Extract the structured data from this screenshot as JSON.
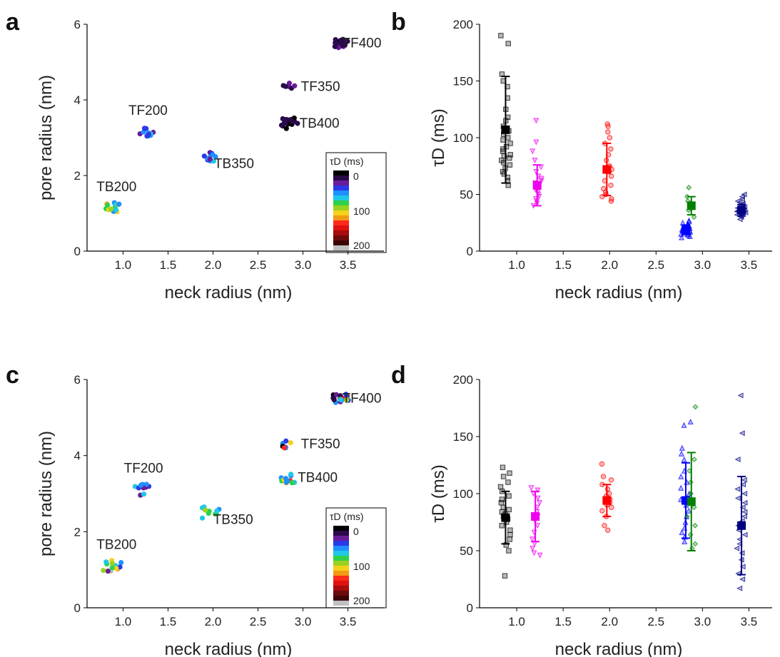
{
  "colorbar": {
    "title": "τD (ms)",
    "tick_labels": [
      "0",
      "100",
      "200"
    ],
    "colors": [
      "#000000",
      "#2b0a4a",
      "#6a1b9a",
      "#2b39e8",
      "#1e90ff",
      "#1ec8e6",
      "#2ed24a",
      "#9bd21e",
      "#f5d11b",
      "#f39a14",
      "#ff2a1a",
      "#e0120f",
      "#a80c0c",
      "#6d0a0a",
      "#3d0505",
      "#c0c0c0"
    ]
  },
  "chart_data": [
    {
      "panel": "a",
      "type": "scatter",
      "xlabel": "neck radius (nm)",
      "ylabel": "pore radius (nm)",
      "xlim": [
        0.6,
        3.9
      ],
      "ylim": [
        0,
        6
      ],
      "xticks": [
        "1.0",
        "1.5",
        "2.0",
        "2.5",
        "3.0",
        "3.5"
      ],
      "yticks": [
        "0",
        "2",
        "4",
        "6"
      ],
      "color_scale": "τD (ms), 0–200",
      "clusters": [
        {
          "label": "TB200",
          "x": 0.88,
          "y": 1.13,
          "spread_x": 0.09,
          "spread_y": 0.15,
          "tau": [
            100,
            60,
            80,
            120,
            70,
            90,
            110,
            50,
            85,
            95,
            75,
            65,
            105,
            55,
            88
          ]
        },
        {
          "label": "TF200",
          "x": 1.25,
          "y": 3.15,
          "spread_x": 0.09,
          "spread_y": 0.13,
          "tau": [
            55,
            30,
            60,
            35,
            50,
            40,
            65,
            45,
            58,
            38,
            52,
            48
          ]
        },
        {
          "label": "TB350",
          "x": 1.98,
          "y": 2.5,
          "spread_x": 0.08,
          "spread_y": 0.12,
          "tau": [
            60,
            30,
            55,
            40,
            65,
            50,
            35,
            58,
            45,
            62,
            38
          ]
        },
        {
          "label": "TF350",
          "x": 2.85,
          "y": 4.35,
          "spread_x": 0.07,
          "spread_y": 0.1,
          "tau": [
            25,
            20,
            30,
            22,
            28,
            18
          ]
        },
        {
          "label": "TB400",
          "x": 2.85,
          "y": 3.38,
          "spread_x": 0.09,
          "spread_y": 0.14,
          "tau": [
            12,
            15,
            10,
            18,
            14,
            16,
            11,
            13,
            17,
            12,
            15,
            14,
            10,
            16,
            13,
            12,
            18,
            11,
            14,
            15
          ]
        },
        {
          "label": "TF400",
          "x": 3.42,
          "y": 5.5,
          "spread_x": 0.08,
          "spread_y": 0.12,
          "tau": [
            15,
            20,
            25,
            18,
            22,
            12,
            28,
            16,
            19,
            24,
            17,
            21,
            14,
            23,
            26,
            13,
            20,
            18
          ]
        }
      ]
    },
    {
      "panel": "b",
      "type": "scatter",
      "xlabel": "neck radius (nm)",
      "ylabel": "τD (ms)",
      "xlim": [
        0.6,
        3.75
      ],
      "ylim": [
        0,
        200
      ],
      "xticks": [
        "1.0",
        "1.5",
        "2.0",
        "2.5",
        "3.0",
        "3.5"
      ],
      "yticks": [
        "0",
        "50",
        "100",
        "150",
        "200"
      ],
      "series": [
        {
          "x": 0.88,
          "mean": 107,
          "sd": 47,
          "color": "#000000",
          "marker": "square",
          "points": [
            58,
            62,
            65,
            68,
            70,
            73,
            76,
            78,
            80,
            82,
            84,
            85,
            88,
            90,
            92,
            95,
            98,
            100,
            103,
            106,
            110,
            115,
            118,
            125,
            135,
            145,
            150,
            156,
            183,
            190
          ]
        },
        {
          "x": 1.22,
          "mean": 58,
          "sd": 18,
          "color": "#ee00ee",
          "marker": "triangle-down",
          "points": [
            40,
            42,
            44,
            46,
            48,
            50,
            52,
            54,
            55,
            56,
            58,
            60,
            62,
            64,
            66,
            70,
            74,
            80,
            88,
            96,
            115
          ]
        },
        {
          "x": 1.97,
          "mean": 72,
          "sd": 23,
          "color": "#ff0000",
          "marker": "circle",
          "points": [
            44,
            46,
            48,
            50,
            52,
            55,
            58,
            62,
            66,
            70,
            72,
            75,
            80,
            85,
            90,
            95,
            100,
            105,
            110,
            112
          ]
        },
        {
          "x": 2.82,
          "mean": 19,
          "sd": 4,
          "color": "#0000ff",
          "marker": "triangle-up",
          "points": [
            12,
            13,
            14,
            15,
            15,
            16,
            16,
            17,
            17,
            18,
            18,
            18,
            19,
            19,
            20,
            20,
            21,
            21,
            22,
            22,
            23,
            24,
            25,
            26,
            27
          ]
        },
        {
          "x": 2.88,
          "mean": 40,
          "sd": 8,
          "color": "#008000",
          "marker": "diamond",
          "points": [
            30,
            36,
            44,
            48,
            56
          ]
        },
        {
          "x": 3.42,
          "mean": 36,
          "sd": 5,
          "color": "#000080",
          "marker": "triangle-left",
          "points": [
            28,
            30,
            31,
            32,
            33,
            34,
            34,
            35,
            35,
            36,
            36,
            37,
            37,
            38,
            38,
            39,
            40,
            41,
            42,
            43,
            44,
            46,
            48,
            50
          ]
        }
      ]
    },
    {
      "panel": "c",
      "type": "scatter",
      "xlabel": "neck radius (nm)",
      "ylabel": "pore radius (nm)",
      "xlim": [
        0.6,
        3.9
      ],
      "ylim": [
        0,
        6
      ],
      "xticks": [
        "1.0",
        "1.5",
        "2.0",
        "2.5",
        "3.0",
        "3.5"
      ],
      "yticks": [
        "0",
        "2",
        "4",
        "6"
      ],
      "color_scale": "τD (ms), 0–200",
      "clusters": [
        {
          "label": "TB200",
          "x": 0.88,
          "y": 1.1,
          "spread_x": 0.1,
          "spread_y": 0.15,
          "tau": [
            200,
            60,
            120,
            80,
            40,
            100,
            50,
            70,
            90,
            110,
            30,
            65,
            85,
            95
          ]
        },
        {
          "label": "TF200",
          "x": 1.2,
          "y": 3.1,
          "spread_x": 0.09,
          "spread_y": 0.15,
          "tau": [
            40,
            55,
            25,
            60,
            35,
            70,
            45,
            50,
            30,
            65
          ]
        },
        {
          "label": "TB350",
          "x": 1.97,
          "y": 2.5,
          "spread_x": 0.1,
          "spread_y": 0.15,
          "tau": [
            70,
            80,
            65,
            85,
            60,
            75,
            90,
            68,
            78,
            72
          ]
        },
        {
          "label": "TF350",
          "x": 2.85,
          "y": 4.3,
          "spread_x": 0.09,
          "spread_y": 0.12,
          "tau": [
            30,
            55,
            110,
            10,
            60,
            130,
            45
          ]
        },
        {
          "label": "TB400",
          "x": 2.83,
          "y": 3.42,
          "spread_x": 0.09,
          "spread_y": 0.14,
          "tau": [
            55,
            70,
            60,
            120,
            80,
            65,
            130,
            50,
            75,
            100,
            62,
            58
          ]
        },
        {
          "label": "TF400",
          "x": 3.42,
          "y": 5.5,
          "spread_x": 0.09,
          "spread_y": 0.12,
          "tau": [
            10,
            30,
            120,
            50,
            25,
            110,
            40,
            15,
            60,
            35,
            130,
            20,
            45,
            90,
            28,
            55,
            18,
            100,
            38,
            70
          ]
        }
      ]
    },
    {
      "panel": "d",
      "type": "scatter",
      "xlabel": "neck radius (nm)",
      "ylabel": "τD (ms)",
      "xlim": [
        0.6,
        3.75
      ],
      "ylim": [
        0,
        200
      ],
      "xticks": [
        "1.0",
        "1.5",
        "2.0",
        "2.5",
        "3.0",
        "3.5"
      ],
      "yticks": [
        "0",
        "50",
        "100",
        "150",
        "200"
      ],
      "series": [
        {
          "x": 0.88,
          "mean": 79,
          "sd": 23,
          "color": "#000000",
          "marker": "square",
          "points": [
            28,
            50,
            55,
            60,
            64,
            68,
            72,
            75,
            78,
            80,
            82,
            84,
            86,
            88,
            92,
            95,
            98,
            102,
            106,
            110,
            115,
            118,
            123
          ]
        },
        {
          "x": 1.2,
          "mean": 80,
          "sd": 22,
          "color": "#ee00ee",
          "marker": "triangle-down",
          "points": [
            46,
            48,
            52,
            56,
            60,
            66,
            72,
            76,
            80,
            84,
            88,
            92,
            96,
            100,
            103,
            105
          ]
        },
        {
          "x": 1.97,
          "mean": 94,
          "sd": 14,
          "color": "#ff0000",
          "marker": "circle",
          "points": [
            68,
            72,
            80,
            85,
            88,
            90,
            92,
            95,
            98,
            100,
            104,
            108,
            112,
            115,
            126
          ]
        },
        {
          "x": 2.82,
          "mean": 94,
          "sd": 33,
          "color": "#0000ff",
          "marker": "triangle-up",
          "points": [
            58,
            62,
            66,
            70,
            75,
            80,
            85,
            90,
            95,
            100,
            105,
            110,
            115,
            120,
            130,
            135,
            140,
            160,
            163
          ]
        },
        {
          "x": 2.88,
          "mean": 93,
          "sd": 43,
          "color": "#008000",
          "marker": "diamond",
          "points": [
            52,
            56,
            64,
            72,
            80,
            88,
            100,
            110,
            120,
            130,
            176
          ]
        },
        {
          "x": 3.42,
          "mean": 72,
          "sd": 43,
          "color": "#000080",
          "marker": "triangle-left",
          "points": [
            17,
            25,
            30,
            36,
            42,
            48,
            52,
            56,
            60,
            64,
            68,
            72,
            76,
            80,
            84,
            88,
            92,
            96,
            100,
            104,
            108,
            112,
            130,
            153,
            186
          ]
        }
      ]
    }
  ]
}
